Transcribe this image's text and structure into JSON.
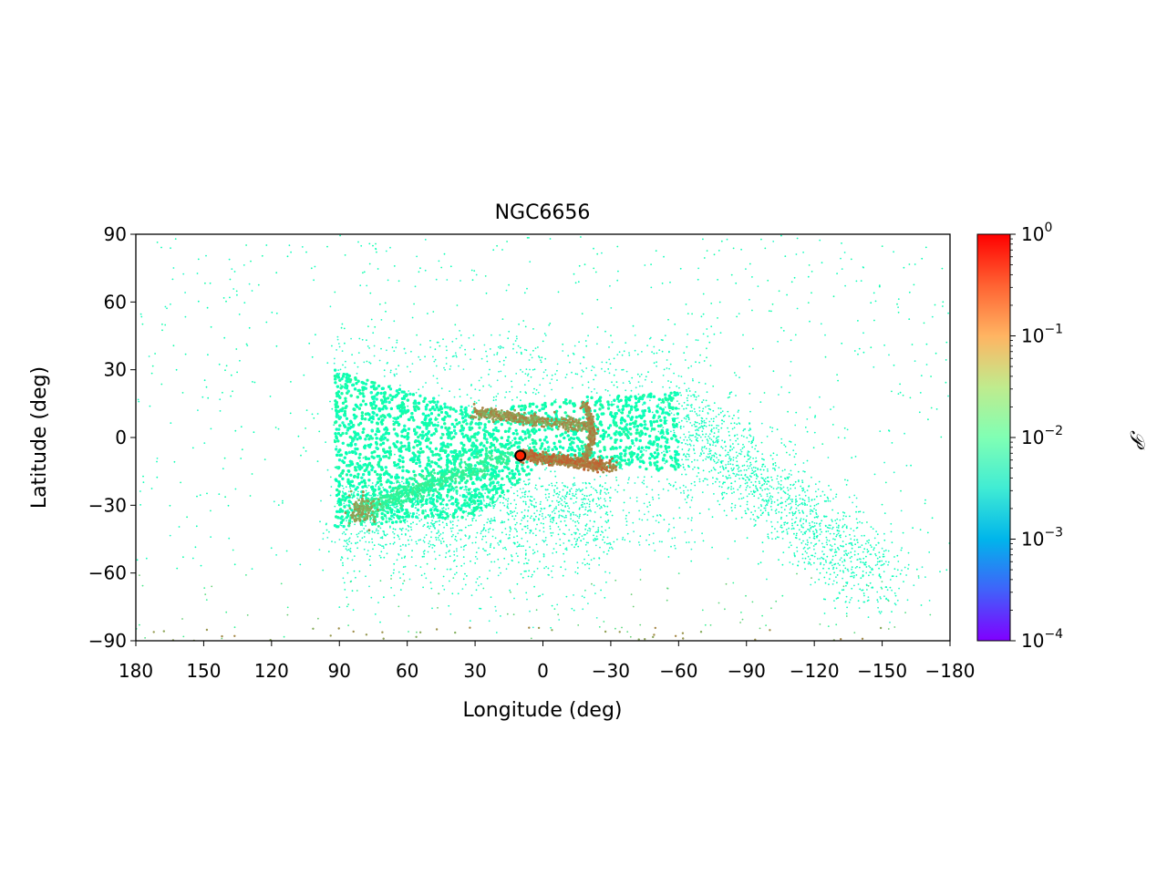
{
  "chart_data": {
    "type": "scatter",
    "title": "NGC6656",
    "xlabel": "Longitude (deg)",
    "ylabel": "Latitude (deg)",
    "xlim": [
      180,
      -180
    ],
    "ylim": [
      -90,
      90
    ],
    "xticks": [
      180,
      150,
      120,
      90,
      60,
      30,
      0,
      -30,
      -60,
      -90,
      -120,
      -150,
      -180
    ],
    "xtick_labels": [
      "180",
      "150",
      "120",
      "90",
      "60",
      "30",
      "0",
      "−30",
      "−60",
      "−90",
      "−120",
      "−150",
      "−180"
    ],
    "yticks": [
      90,
      60,
      30,
      0,
      -30,
      -60,
      -90
    ],
    "ytick_labels": [
      "90",
      "60",
      "30",
      "0",
      "−30",
      "−60",
      "−90"
    ],
    "grid": false,
    "colorbar": {
      "label": "𝒫",
      "scale": "log",
      "colormap": "rainbow",
      "range": [
        0.0001,
        1
      ],
      "ticks": [
        {
          "value": 1,
          "base": "10",
          "exp": "0"
        },
        {
          "value": 0.1,
          "base": "10",
          "exp": "−1"
        },
        {
          "value": 0.01,
          "base": "10",
          "exp": "−2"
        },
        {
          "value": 0.001,
          "base": "10",
          "exp": "−3"
        },
        {
          "value": 0.0001,
          "base": "10",
          "exp": "−4"
        }
      ]
    },
    "cluster_marker": {
      "name": "NGC6656",
      "lon": 10,
      "lat": -8,
      "color": "#ff2200",
      "edge": "#000000"
    },
    "features": [
      {
        "name": "main stream distribution",
        "type": "band",
        "points": [
          [
            92,
            30
          ],
          [
            30,
            12
          ],
          [
            -20,
            18
          ],
          [
            -60,
            20
          ],
          [
            -60,
            -15
          ],
          [
            0,
            -12
          ],
          [
            30,
            -35
          ],
          [
            92,
            -40
          ]
        ],
        "density": 0.012
      },
      {
        "name": "upper filament",
        "lon_range": [
          30,
          -20
        ],
        "lat": [
          10,
          5
        ],
        "density": 0.15
      },
      {
        "name": "loop arc",
        "lon": -20,
        "lat_range": [
          15,
          -10
        ],
        "density": 0.2
      },
      {
        "name": "lower filament",
        "lon_range": [
          10,
          -30
        ],
        "lat": [
          -10,
          -12
        ],
        "density": 0.3
      },
      {
        "name": "lower-left knot",
        "lon": 80,
        "lat": -32,
        "density": 0.15
      },
      {
        "name": "southern debris arm",
        "lon_range": [
          -60,
          -150
        ],
        "lat_range": [
          10,
          -70
        ],
        "density": 0.005
      },
      {
        "name": "sparse halo",
        "lon_range": [
          180,
          -180
        ],
        "lat_range": [
          -90,
          90
        ],
        "density": 0.02
      }
    ]
  }
}
